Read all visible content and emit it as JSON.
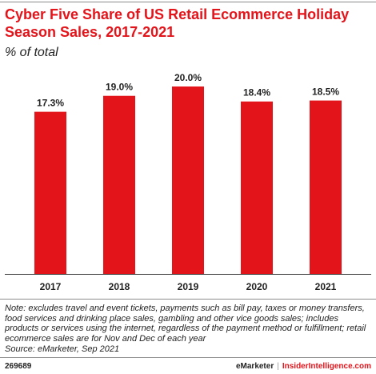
{
  "header": {
    "title": "Cyber Five Share of US Retail Ecommerce Holiday Season Sales, 2017-2021",
    "subtitle": "% of total"
  },
  "chart_data": {
    "type": "bar",
    "categories": [
      "2017",
      "2018",
      "2019",
      "2020",
      "2021"
    ],
    "values": [
      17.3,
      19.0,
      20.0,
      18.4,
      18.5
    ],
    "value_labels": [
      "17.3%",
      "19.0%",
      "20.0%",
      "18.4%",
      "18.5%"
    ],
    "title": "Cyber Five Share of US Retail Ecommerce Holiday Season Sales, 2017-2021",
    "ylabel": "",
    "xlabel": "",
    "ylim": [
      0,
      20
    ],
    "grid": false,
    "bar_color": "#e4141b"
  },
  "notes": {
    "note": "Note: excludes travel and event tickets, payments such as bill pay, taxes or money transfers, food services and drinking place sales, gambling and other vice goods sales; includes products or services using the internet, regardless of the payment method or fulfillment; retail ecommerce sales are for Nov and Dec of each year",
    "source": "Source: eMarketer, Sep 2021"
  },
  "footer": {
    "chart_id": "269689",
    "brand": "eMarketer",
    "separator": "|",
    "site": "InsiderIntelligence.com"
  }
}
